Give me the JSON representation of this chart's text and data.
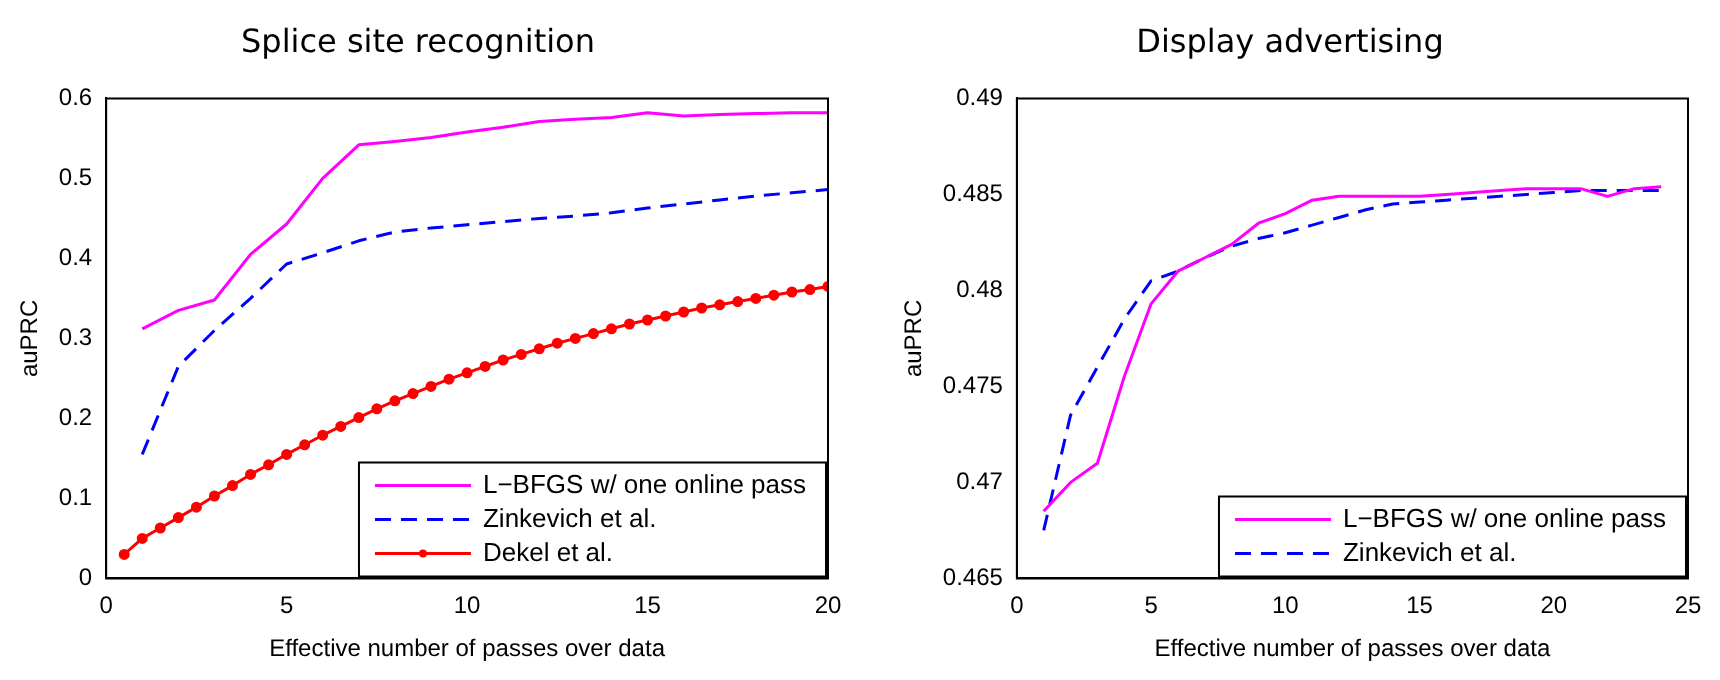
{
  "chart_data": [
    {
      "type": "line",
      "title": "Splice site recognition",
      "xlabel": "Effective number of passes over data",
      "ylabel": "auPRC",
      "xlim": [
        0,
        20
      ],
      "xticks": [
        0,
        5,
        10,
        15,
        20
      ],
      "ylim": [
        0,
        0.6
      ],
      "yticks": [
        0,
        0.1,
        0.2,
        0.3,
        0.4,
        0.5,
        0.6
      ],
      "grid": false,
      "legend": "bottom right",
      "series": [
        {
          "name": "L−BFGS w/ one online pass",
          "color": "#ff00ff",
          "line_style": "solid",
          "marker": "none",
          "x": [
            1,
            2,
            3,
            4,
            5,
            6,
            7,
            8,
            9,
            10,
            11,
            12,
            13,
            14,
            15,
            16,
            17,
            18,
            19,
            20
          ],
          "values": [
            0.312,
            0.335,
            0.348,
            0.405,
            0.443,
            0.5,
            0.542,
            0.546,
            0.551,
            0.558,
            0.564,
            0.571,
            0.574,
            0.576,
            0.582,
            0.578,
            0.58,
            0.581,
            0.582,
            0.582
          ]
        },
        {
          "name": "Zinkevich et al.",
          "color": "#0000ff",
          "line_style": "dashed",
          "marker": "none",
          "x": [
            1,
            2,
            3,
            4,
            5,
            6,
            7,
            8,
            9,
            10,
            11,
            12,
            13,
            14,
            15,
            16,
            17,
            18,
            19,
            20
          ],
          "values": [
            0.155,
            0.265,
            0.31,
            0.35,
            0.393,
            0.407,
            0.422,
            0.433,
            0.438,
            0.442,
            0.446,
            0.45,
            0.453,
            0.457,
            0.463,
            0.468,
            0.473,
            0.478,
            0.482,
            0.486
          ]
        },
        {
          "name": "Dekel et al.",
          "color": "#ff0000",
          "line_style": "solid",
          "marker": "circle",
          "x": [
            0.5,
            1,
            1.5,
            2,
            2.5,
            3,
            3.5,
            4,
            4.5,
            5,
            5.5,
            6,
            6.5,
            7,
            7.5,
            8,
            8.5,
            9,
            9.5,
            10,
            10.5,
            11,
            11.5,
            12,
            12.5,
            13,
            13.5,
            14,
            14.5,
            15,
            15.5,
            16,
            16.5,
            17,
            17.5,
            18,
            18.5,
            19,
            19.5,
            20
          ],
          "values": [
            0.03,
            0.05,
            0.063,
            0.076,
            0.089,
            0.103,
            0.116,
            0.13,
            0.142,
            0.155,
            0.167,
            0.179,
            0.19,
            0.201,
            0.212,
            0.222,
            0.231,
            0.24,
            0.249,
            0.257,
            0.265,
            0.273,
            0.28,
            0.287,
            0.294,
            0.3,
            0.306,
            0.312,
            0.318,
            0.323,
            0.328,
            0.333,
            0.338,
            0.342,
            0.346,
            0.35,
            0.354,
            0.358,
            0.361,
            0.365
          ]
        }
      ]
    },
    {
      "type": "line",
      "title": "Display advertising",
      "xlabel": "Effective number of passes over data",
      "ylabel": "auPRC",
      "xlim": [
        0,
        25
      ],
      "xticks": [
        0,
        5,
        10,
        15,
        20,
        25
      ],
      "ylim": [
        0.465,
        0.49
      ],
      "yticks": [
        0.465,
        0.47,
        0.475,
        0.48,
        0.485,
        0.49
      ],
      "grid": false,
      "legend": "bottom right",
      "series": [
        {
          "name": "L−BFGS w/ one online pass",
          "color": "#ff00ff",
          "line_style": "solid",
          "marker": "none",
          "x": [
            1,
            2,
            3,
            4,
            5,
            6,
            7,
            8,
            9,
            10,
            11,
            12,
            13,
            14,
            15,
            16,
            17,
            18,
            19,
            20,
            21,
            22,
            23,
            24
          ],
          "values": [
            0.4685,
            0.47,
            0.471,
            0.4755,
            0.4793,
            0.481,
            0.4817,
            0.4824,
            0.4835,
            0.484,
            0.4847,
            0.4849,
            0.4849,
            0.4849,
            0.4849,
            0.485,
            0.4851,
            0.4852,
            0.4853,
            0.4853,
            0.4853,
            0.4849,
            0.4853,
            0.4854
          ]
        },
        {
          "name": "Zinkevich et al.",
          "color": "#0000ff",
          "line_style": "dashed",
          "marker": "none",
          "x": [
            1,
            2,
            3,
            4,
            5,
            6,
            7,
            8,
            9,
            10,
            11,
            12,
            13,
            14,
            15,
            16,
            17,
            18,
            19,
            20,
            21,
            22,
            23,
            24
          ],
          "values": [
            0.4675,
            0.4735,
            0.476,
            0.4785,
            0.4805,
            0.481,
            0.4817,
            0.4823,
            0.4827,
            0.483,
            0.4834,
            0.4838,
            0.4842,
            0.4845,
            0.4846,
            0.4847,
            0.4848,
            0.4849,
            0.485,
            0.4851,
            0.4852,
            0.4852,
            0.4852,
            0.4852
          ]
        }
      ]
    }
  ]
}
